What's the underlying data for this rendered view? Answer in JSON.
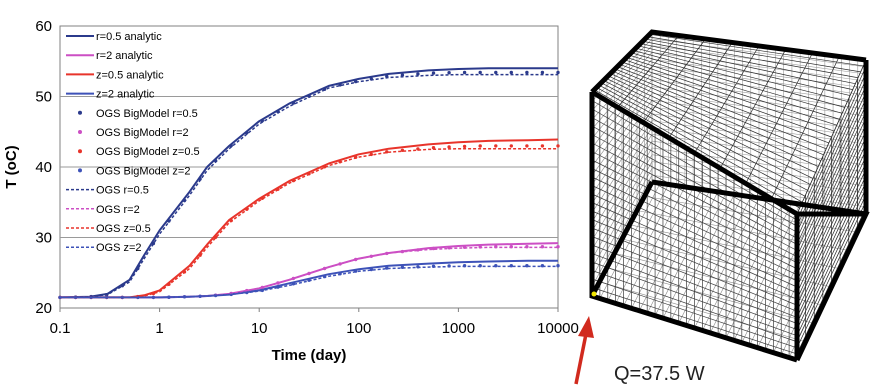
{
  "chart_data": {
    "type": "line",
    "xlabel": "Time (day)",
    "ylabel": "T (oC)",
    "xscale": "log",
    "xlim": [
      0.1,
      10000
    ],
    "ylim": [
      20,
      60
    ],
    "x_ticks": [
      "0.1",
      "1",
      "10",
      "100",
      "1000",
      "10000"
    ],
    "y_ticks": [
      "20",
      "30",
      "40",
      "50",
      "60"
    ],
    "grid": "horizontal",
    "legend_position": "top-left",
    "x": [
      0.1,
      0.2,
      0.3,
      0.5,
      0.7,
      1,
      2,
      3,
      5,
      10,
      20,
      50,
      100,
      200,
      500,
      1000,
      2000,
      5000,
      10000
    ],
    "series": [
      {
        "name": "r=0.5 analytic",
        "style": "solid",
        "color": "#2b3a8c",
        "values": [
          21.5,
          21.6,
          22.0,
          24.0,
          27.5,
          31.0,
          36.5,
          40.0,
          43.0,
          46.5,
          49.0,
          51.5,
          52.5,
          53.2,
          53.7,
          53.9,
          54.0,
          54.0,
          54.0
        ]
      },
      {
        "name": "r=2 analytic",
        "style": "solid",
        "color": "#cc4fc4",
        "values": [
          21.5,
          21.5,
          21.5,
          21.5,
          21.5,
          21.5,
          21.6,
          21.7,
          22.0,
          22.8,
          24.0,
          25.8,
          27.0,
          27.8,
          28.5,
          28.8,
          29.0,
          29.1,
          29.2
        ]
      },
      {
        "name": "z=0.5 analytic",
        "style": "solid",
        "color": "#e8342b",
        "values": [
          21.5,
          21.5,
          21.5,
          21.5,
          21.8,
          22.5,
          26.0,
          29.0,
          32.5,
          35.5,
          38.0,
          40.5,
          41.8,
          42.6,
          43.2,
          43.5,
          43.7,
          43.8,
          43.9
        ]
      },
      {
        "name": "z=2 analytic",
        "style": "solid",
        "color": "#3d52b8",
        "values": [
          21.5,
          21.5,
          21.5,
          21.5,
          21.5,
          21.5,
          21.6,
          21.7,
          21.9,
          22.5,
          23.5,
          24.8,
          25.5,
          26.0,
          26.3,
          26.5,
          26.6,
          26.7,
          26.7
        ]
      },
      {
        "name": "OGS BigModel r=0.5",
        "style": "dots",
        "color": "#2b3a8c",
        "values": [
          21.5,
          21.6,
          21.9,
          23.8,
          27.0,
          30.6,
          36.2,
          39.7,
          42.8,
          46.3,
          48.8,
          51.3,
          52.2,
          52.9,
          53.3,
          53.4,
          53.4,
          53.4,
          53.4
        ]
      },
      {
        "name": "OGS BigModel r=2",
        "style": "dots",
        "color": "#cc4fc4",
        "values": [
          21.5,
          21.5,
          21.5,
          21.5,
          21.5,
          21.5,
          21.6,
          21.7,
          22.0,
          22.8,
          24.0,
          25.8,
          27.0,
          27.8,
          28.4,
          28.6,
          28.7,
          28.7,
          28.7
        ]
      },
      {
        "name": "OGS BigModel z=0.5",
        "style": "dots",
        "color": "#e8342b",
        "values": [
          21.5,
          21.5,
          21.5,
          21.5,
          21.7,
          22.3,
          25.7,
          28.7,
          32.2,
          35.3,
          37.8,
          40.3,
          41.5,
          42.2,
          42.7,
          42.9,
          43.0,
          43.0,
          43.0
        ]
      },
      {
        "name": "OGS BigModel z=2",
        "style": "dots",
        "color": "#3d52b8",
        "values": [
          21.5,
          21.5,
          21.5,
          21.5,
          21.5,
          21.5,
          21.6,
          21.7,
          21.9,
          22.4,
          23.3,
          24.6,
          25.3,
          25.7,
          25.9,
          26.0,
          26.0,
          26.0,
          26.0
        ]
      },
      {
        "name": "OGS r=0.5",
        "style": "dashed",
        "color": "#2b3a8c",
        "values": [
          21.5,
          21.6,
          21.9,
          23.7,
          27.0,
          30.5,
          36.0,
          39.5,
          42.6,
          46.1,
          48.6,
          51.2,
          52.1,
          52.7,
          53.0,
          53.1,
          53.1,
          53.1,
          53.1
        ]
      },
      {
        "name": "OGS r=2",
        "style": "dashed",
        "color": "#cc4fc4",
        "values": [
          21.5,
          21.5,
          21.5,
          21.5,
          21.5,
          21.5,
          21.6,
          21.7,
          22.0,
          22.8,
          24.0,
          25.8,
          27.0,
          27.8,
          28.3,
          28.5,
          28.6,
          28.6,
          28.6
        ]
      },
      {
        "name": "OGS z=0.5",
        "style": "dashed",
        "color": "#e8342b",
        "values": [
          21.5,
          21.5,
          21.5,
          21.5,
          21.7,
          22.3,
          25.6,
          28.6,
          32.1,
          35.2,
          37.7,
          40.2,
          41.4,
          42.1,
          42.5,
          42.6,
          42.6,
          42.6,
          42.6
        ]
      },
      {
        "name": "OGS z=2",
        "style": "dashed",
        "color": "#3d52b8",
        "values": [
          21.5,
          21.5,
          21.5,
          21.5,
          21.5,
          21.5,
          21.6,
          21.7,
          21.9,
          22.4,
          23.2,
          24.5,
          25.2,
          25.6,
          25.8,
          25.9,
          25.9,
          25.9,
          25.9
        ]
      }
    ]
  },
  "annotation": {
    "label": "Q=37.5 W",
    "arrow_color": "#d12a1e"
  }
}
